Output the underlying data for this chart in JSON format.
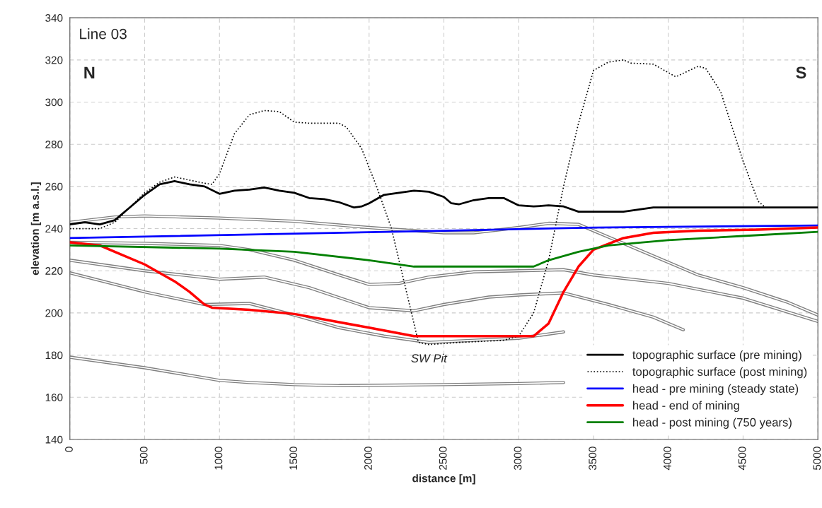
{
  "chart_data": {
    "type": "line",
    "xlabel": "distance [m]",
    "ylabel": "elevation [m a.s.l.]",
    "xlim": [
      0,
      5000
    ],
    "xticks": [
      0,
      500,
      1000,
      1500,
      2000,
      2500,
      3000,
      3500,
      4000,
      4500,
      5000
    ],
    "ylim": [
      140,
      340
    ],
    "yticks": [
      140,
      160,
      180,
      200,
      220,
      240,
      260,
      280,
      300,
      320,
      340
    ],
    "grid": true,
    "legend": "bottom right",
    "marker": "none",
    "annotations": [
      "Line 03",
      "N",
      "S",
      "SW Pit"
    ],
    "series": [
      {
        "name": "topographic surface (pre mining)",
        "color": "#000000",
        "line_style": "solid",
        "x": [
          0,
          100,
          200,
          300,
          400,
          500,
          600,
          700,
          800,
          900,
          1000,
          1100,
          1200,
          1300,
          1400,
          1500,
          1600,
          1700,
          1800,
          1900,
          1950,
          2000,
          2100,
          2200,
          2300,
          2400,
          2500,
          2550,
          2600,
          2700,
          2800,
          2900,
          3000,
          3100,
          3200,
          3300,
          3400,
          3500,
          3600,
          3700,
          3800,
          3900,
          4000,
          4200,
          4500,
          5000
        ],
        "values": [
          242,
          243,
          242,
          244,
          250,
          256,
          261,
          262.5,
          261,
          260,
          256.5,
          258,
          258.5,
          259.5,
          258,
          257,
          254.5,
          254,
          252.5,
          250,
          250.5,
          252,
          256,
          257,
          258,
          257.5,
          255,
          252,
          251.5,
          253.5,
          254.5,
          254.5,
          251,
          250.5,
          251,
          250.5,
          248,
          248,
          248,
          248,
          249,
          250,
          250,
          250,
          250,
          250
        ]
      },
      {
        "name": "topographic surface (post mining)",
        "color": "#000000",
        "line_style": "dotted",
        "x": [
          0,
          200,
          300,
          400,
          500,
          600,
          700,
          800,
          900,
          950,
          1000,
          1100,
          1200,
          1300,
          1400,
          1500,
          1600,
          1800,
          1850,
          1950,
          2050,
          2150,
          2250,
          2330,
          2400,
          2600,
          2900,
          3000,
          3100,
          3200,
          3300,
          3400,
          3500,
          3600,
          3700,
          3750,
          3900,
          4000,
          4050,
          4200,
          4250,
          4350,
          4500,
          4600,
          4650,
          5000
        ],
        "values": [
          240,
          240,
          243,
          250,
          257,
          262,
          264.5,
          263,
          261.5,
          261,
          266,
          285,
          294,
          296,
          295.5,
          290.5,
          290,
          290,
          288,
          278,
          260,
          240,
          210,
          186,
          185,
          186,
          187,
          189,
          200,
          225,
          260,
          290,
          315,
          319,
          320,
          318.5,
          318,
          314,
          312,
          317,
          316,
          305,
          272,
          253,
          250,
          250
        ]
      },
      {
        "name": "head - pre mining (steady state)",
        "color": "#0000ff",
        "line_style": "solid",
        "x": [
          0,
          2500,
          3500,
          5000
        ],
        "values": [
          235.5,
          239,
          240.5,
          241.5
        ]
      },
      {
        "name": "head - end of mining",
        "color": "#ff0000",
        "line_style": "solid",
        "x": [
          0,
          200,
          300,
          500,
          700,
          800,
          900,
          950,
          1200,
          1500,
          2000,
          2300,
          3000,
          3100,
          3200,
          3300,
          3400,
          3500,
          3700,
          3900,
          4200,
          4600,
          5000
        ],
        "values": [
          233.5,
          232,
          229,
          223,
          215,
          210,
          204,
          202.5,
          201.5,
          199.5,
          193,
          189,
          189,
          189,
          195,
          210,
          222,
          230,
          235.5,
          238,
          239,
          239.5,
          240.5
        ]
      },
      {
        "name": "head - post mining (750 years)",
        "color": "#008000",
        "line_style": "solid",
        "x": [
          0,
          1000,
          1500,
          2000,
          2300,
          3000,
          3100,
          3200,
          3400,
          3600,
          4000,
          4500,
          5000
        ],
        "values": [
          232,
          230.5,
          229,
          225,
          222,
          222,
          222,
          225,
          229,
          232,
          234.5,
          236.5,
          238.5
        ]
      },
      {
        "color": "#808080",
        "x": [
          0,
          300,
          500,
          1000,
          1500,
          2000,
          2500,
          2700,
          3000,
          3200,
          3400,
          3600,
          3800,
          4000,
          4200,
          4500,
          4800,
          5000
        ],
        "values": [
          243,
          245.5,
          246,
          245,
          243.5,
          240.5,
          238,
          238,
          240.5,
          242.5,
          242,
          236,
          230,
          224,
          218,
          212,
          205,
          199
        ]
      },
      {
        "color": "#808080",
        "x": [
          0,
          500,
          1000,
          1200,
          1500,
          1800,
          2000,
          2200,
          2400,
          2700,
          3000,
          3300,
          3500,
          4000,
          4500,
          5000
        ],
        "values": [
          233.5,
          233,
          232,
          230,
          225,
          218,
          213.5,
          214,
          217,
          219.5,
          220,
          220.5,
          218,
          214,
          207,
          196
        ]
      },
      {
        "color": "#808080",
        "x": [
          0,
          500,
          1000,
          1300,
          1600,
          2000,
          2300,
          2500,
          2800,
          3000,
          3300,
          3600,
          3900,
          4100
        ],
        "values": [
          225,
          220,
          216,
          217,
          212,
          202.5,
          201,
          204,
          207.5,
          208.5,
          209.5,
          204,
          198,
          192
        ]
      },
      {
        "color": "#808080",
        "x": [
          0,
          500,
          900,
          1200,
          1500,
          1800,
          2100,
          2400,
          2700,
          3000,
          3300
        ],
        "values": [
          219,
          210,
          204,
          204.5,
          199,
          193,
          189,
          186,
          187,
          188,
          191
        ]
      },
      {
        "color": "#808080",
        "x": [
          0,
          500,
          1000,
          1200,
          1500,
          1800,
          2500,
          3000,
          3300
        ],
        "values": [
          179,
          174,
          168,
          167,
          166,
          165.5,
          166,
          166.5,
          167
        ]
      }
    ]
  }
}
